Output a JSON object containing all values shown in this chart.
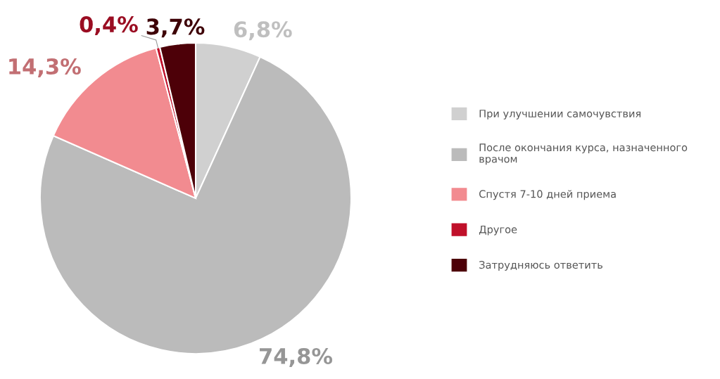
{
  "chart_data": {
    "type": "pie",
    "categories": [
      "При улучшении самочувствия",
      "После окончания курса, назначенного\nврачом",
      "Спустя 7-10 дней приема",
      "Другое",
      "Затрудняюсь ответить"
    ],
    "values": [
      6.8,
      74.8,
      14.3,
      0.4,
      3.7
    ],
    "value_labels": [
      "6,8%",
      "74,8%",
      "14,3%",
      "0,4%",
      "3,7%"
    ],
    "colors": [
      "#d0d0d0",
      "#bbbbbb",
      "#f28b90",
      "#c0102a",
      "#4d0008"
    ],
    "legend": "right"
  }
}
